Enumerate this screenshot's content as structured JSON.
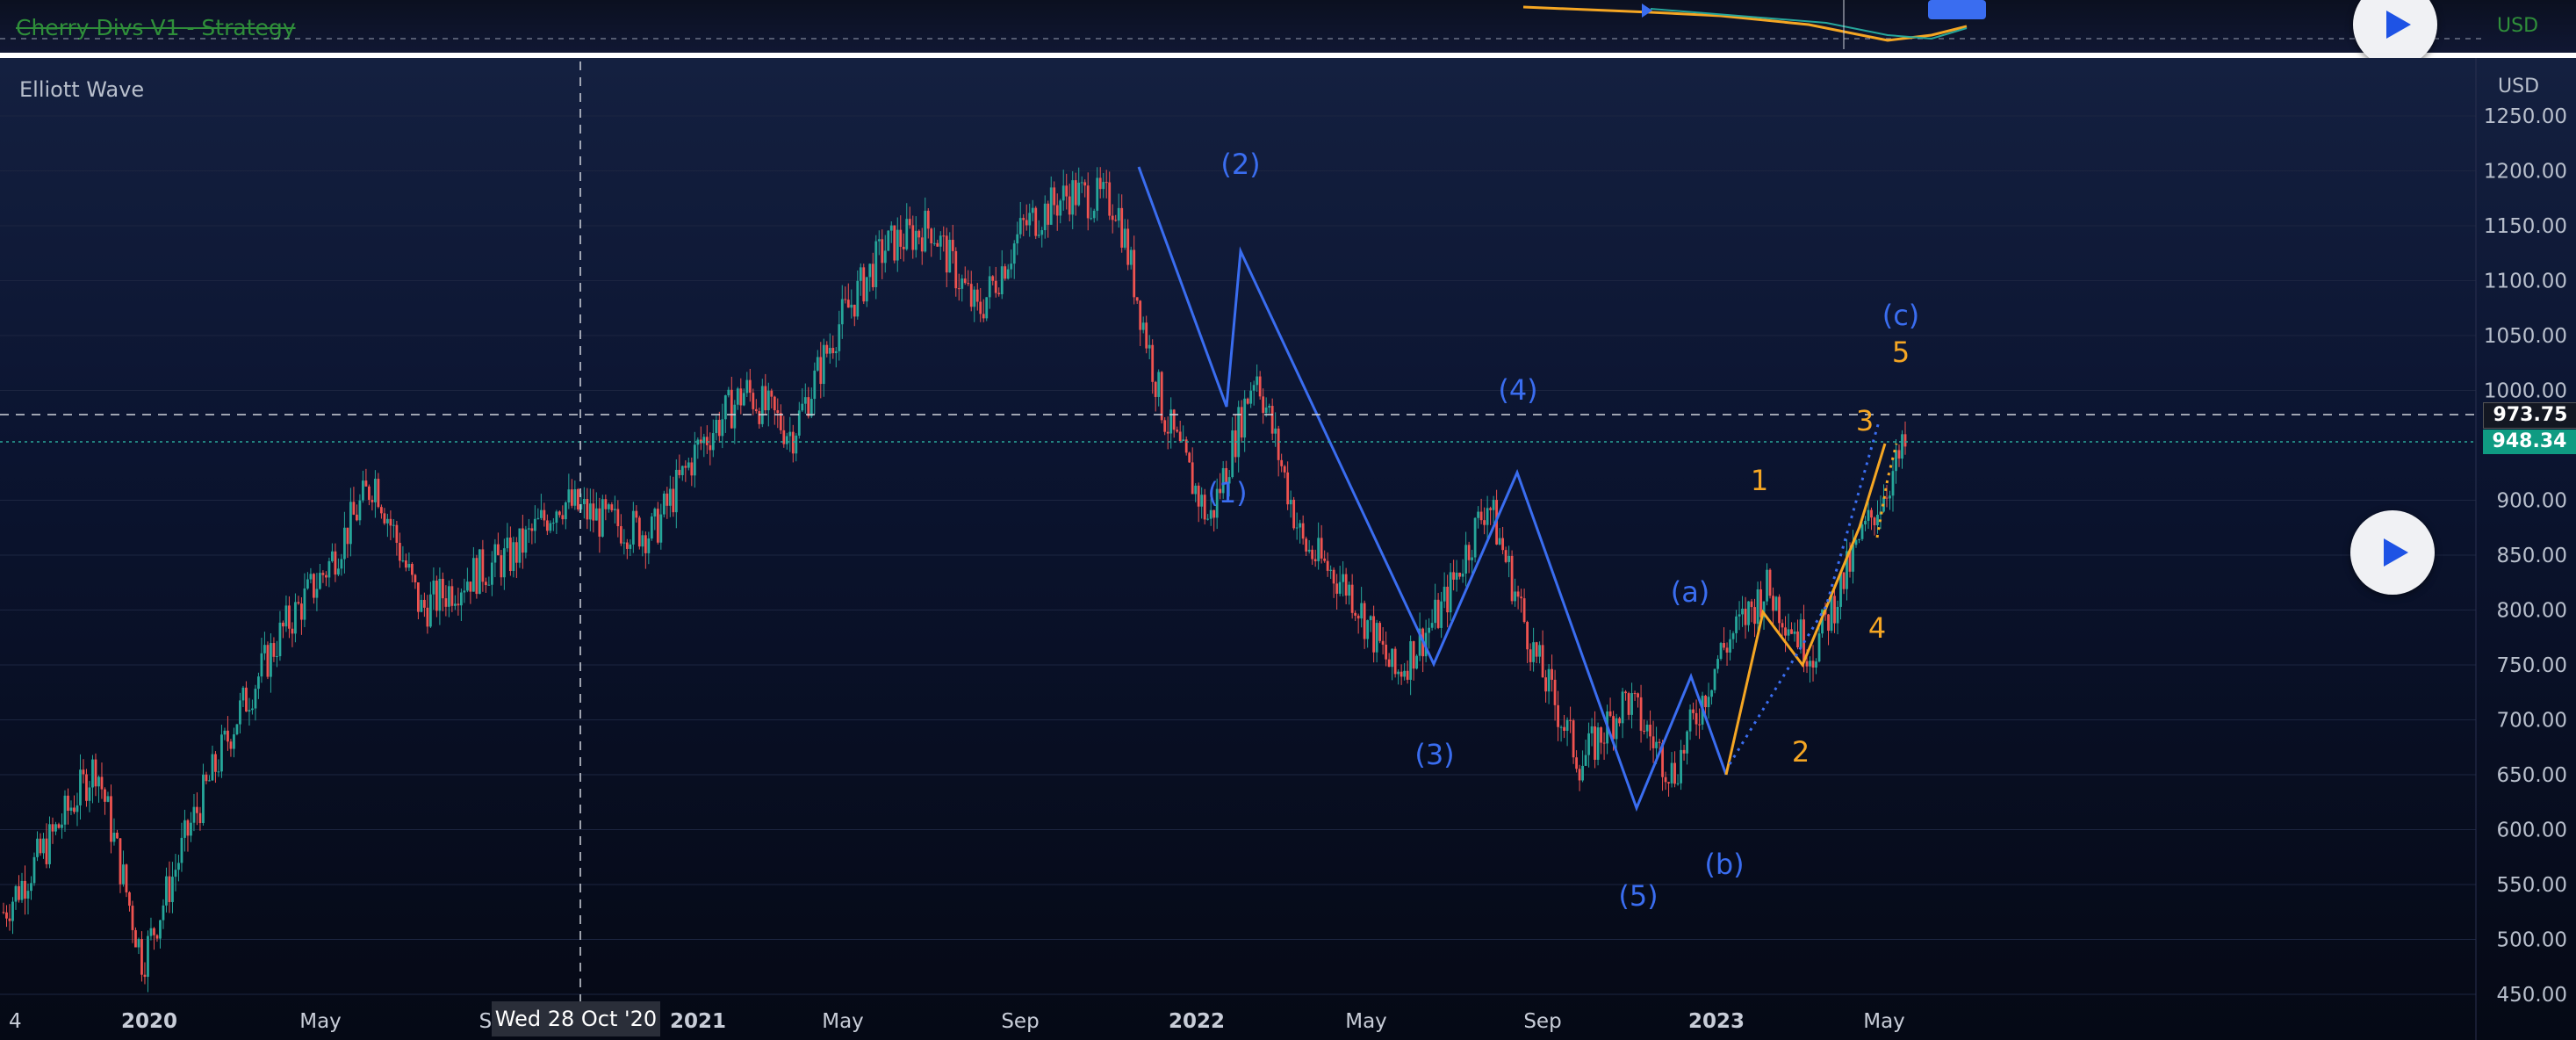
{
  "top_indicator": {
    "title": "Cherry Divs V1 - Strategy",
    "currency": "USD"
  },
  "pane": {
    "title": "Elliott Wave",
    "currency": "USD"
  },
  "price_axis": {
    "ticks": [
      "1250.00",
      "1200.00",
      "1150.00",
      "1100.00",
      "1050.00",
      "1000.00",
      "900.00",
      "850.00",
      "800.00",
      "750.00",
      "700.00",
      "650.00",
      "600.00",
      "550.00",
      "500.00",
      "450.00"
    ],
    "crosshair_price": "973.75",
    "last_price": "948.34",
    "last_price_color": "#0f9b82"
  },
  "time_axis": {
    "labels": [
      "4",
      "2020",
      "May",
      "Se",
      "2021",
      "May",
      "Sep",
      "2022",
      "May",
      "Sep",
      "2023",
      "May"
    ],
    "crosshair_date": "Wed 28 Oct '20"
  },
  "wave_labels": {
    "primary": [
      "(1)",
      "(2)",
      "(3)",
      "(4)",
      "(5)",
      "(a)",
      "(b)",
      "(c)"
    ],
    "minor": [
      "1",
      "2",
      "3",
      "4",
      "5"
    ],
    "primary_color": "#3a6df0",
    "minor_color": "#f5a623"
  },
  "colors": {
    "bull": "#26a69a",
    "bear": "#ef5350",
    "background": "#0b1430"
  },
  "controls": {
    "play_icon": "play-icon"
  },
  "chart_data": {
    "type": "candlestick",
    "title": "Elliott Wave",
    "ylabel": "USD",
    "ylim": [
      440,
      1270
    ],
    "x": [
      "2019-12",
      "2020-01",
      "2020-02",
      "2020-03",
      "2020-04",
      "2020-05",
      "2020-06",
      "2020-07",
      "2020-08",
      "2020-09",
      "2020-10",
      "2020-11",
      "2020-12",
      "2021-01",
      "2021-02",
      "2021-03",
      "2021-04",
      "2021-05",
      "2021-06",
      "2021-07",
      "2021-08",
      "2021-09",
      "2021-10",
      "2021-11",
      "2021-12",
      "2022-01",
      "2022-02",
      "2022-03",
      "2022-04",
      "2022-05",
      "2022-06",
      "2022-07",
      "2022-08",
      "2022-09",
      "2022-10",
      "2022-11",
      "2022-12",
      "2023-01",
      "2023-02",
      "2023-03",
      "2023-04",
      "2023-05"
    ],
    "close": [
      525,
      590,
      660,
      480,
      600,
      700,
      780,
      840,
      920,
      800,
      830,
      850,
      900,
      880,
      870,
      950,
      1000,
      960,
      1060,
      1130,
      1150,
      1070,
      1150,
      1180,
      1170,
      980,
      880,
      1020,
      860,
      820,
      740,
      800,
      900,
      760,
      660,
      720,
      650,
      760,
      820,
      760,
      860,
      948
    ],
    "wave_primary": [
      {
        "label": "(1)",
        "x": "2022-01",
        "y": 980
      },
      {
        "label": "(2)",
        "x": "2022-01",
        "y": 1125
      },
      {
        "label": "(3)",
        "x": "2022-06",
        "y": 742
      },
      {
        "label": "(4)",
        "x": "2022-08",
        "y": 915
      },
      {
        "label": "(5)",
        "x": "2022-10",
        "y": 610
      },
      {
        "label": "(a)",
        "x": "2022-11",
        "y": 733
      },
      {
        "label": "(b)",
        "x": "2022-12",
        "y": 642
      }
    ],
    "wave_minor": [
      {
        "label": "1",
        "x": "2023-01",
        "y": 835
      },
      {
        "label": "2",
        "x": "2023-03",
        "y": 743
      },
      {
        "label": "3",
        "x": "2023-05",
        "y": 948
      }
    ]
  }
}
